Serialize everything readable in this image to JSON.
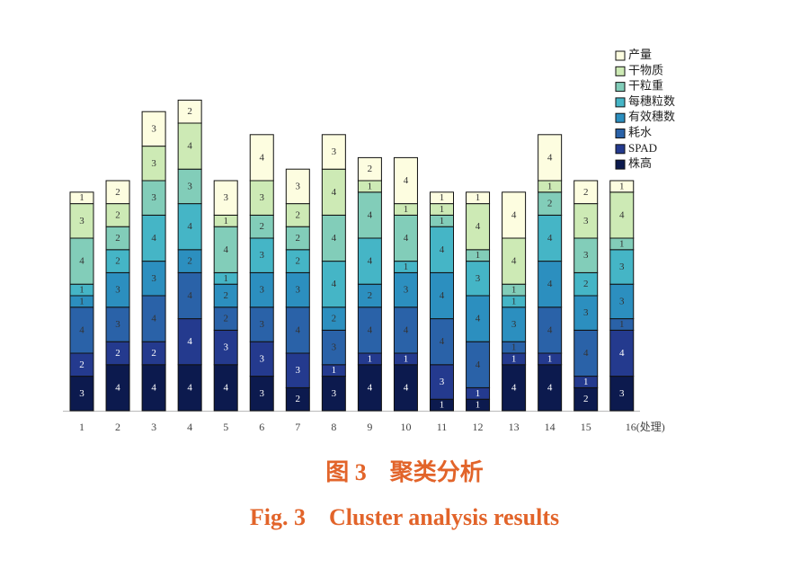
{
  "chart_data": {
    "type": "stacked_bar",
    "title": "图 3　聚类分析",
    "subtitle": "Fig. 3　Cluster analysis results",
    "categories": [
      "1",
      "2",
      "3",
      "4",
      "5",
      "6",
      "7",
      "8",
      "9",
      "10",
      "11",
      "12",
      "13",
      "14",
      "15",
      "16(处理)"
    ],
    "series": [
      {
        "name": "株高",
        "color": "#0c1a4e",
        "values": [
          3,
          4,
          4,
          4,
          4,
          3,
          2,
          3,
          4,
          4,
          1,
          1,
          4,
          4,
          2,
          3
        ]
      },
      {
        "name": "SPAD",
        "color": "#243a8e",
        "values": [
          2,
          2,
          2,
          4,
          3,
          3,
          3,
          1,
          1,
          1,
          3,
          1,
          1,
          1,
          1,
          4
        ]
      },
      {
        "name": "耗水",
        "color": "#2a62a8",
        "values": [
          4,
          3,
          4,
          4,
          2,
          3,
          4,
          3,
          4,
          4,
          4,
          4,
          1,
          4,
          4,
          1
        ]
      },
      {
        "name": "有效穗数",
        "color": "#2c8fbf",
        "values": [
          1,
          3,
          3,
          2,
          2,
          3,
          3,
          2,
          2,
          3,
          4,
          4,
          3,
          4,
          3,
          3
        ]
      },
      {
        "name": "每穗粒数",
        "color": "#45b5c6",
        "values": [
          1,
          2,
          4,
          4,
          1,
          3,
          2,
          4,
          4,
          1,
          4,
          3,
          1,
          4,
          2,
          3
        ]
      },
      {
        "name": "干粒重",
        "color": "#82cdb9",
        "values": [
          4,
          2,
          3,
          3,
          4,
          2,
          2,
          4,
          4,
          4,
          1,
          1,
          1,
          2,
          3,
          1
        ]
      },
      {
        "name": "干物质",
        "color": "#cdeab5",
        "values": [
          3,
          2,
          3,
          4,
          1,
          3,
          2,
          4,
          1,
          1,
          1,
          4,
          4,
          1,
          3,
          4
        ]
      },
      {
        "name": "产量",
        "color": "#fdfde0",
        "values": [
          1,
          2,
          3,
          2,
          3,
          4,
          3,
          3,
          2,
          4,
          1,
          1,
          4,
          4,
          2,
          1
        ]
      }
    ]
  }
}
